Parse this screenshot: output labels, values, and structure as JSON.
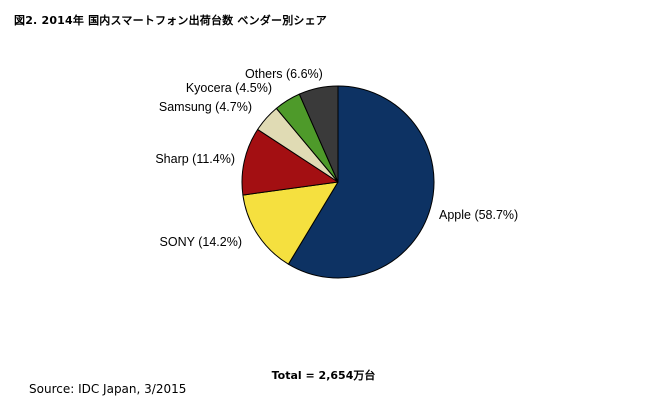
{
  "title": "図2. 2014年 国内スマートフォン出荷台数 ベンダー別シェア",
  "total_text": "Total = 2,654万台",
  "source": "Source: IDC Japan, 3/2015",
  "chart_data": {
    "type": "pie",
    "title": "図2. 2014年 国内スマートフォン出荷台数 ベンダー別シェア",
    "start": "12 o'clock",
    "direction": "clockwise",
    "slices": [
      {
        "name": "Apple",
        "value": 58.7,
        "label": "Apple (58.7%)",
        "color": "#0d3263"
      },
      {
        "name": "SONY",
        "value": 14.2,
        "label": "SONY (14.2%)",
        "color": "#f5e03f"
      },
      {
        "name": "Sharp",
        "value": 11.4,
        "label": "Sharp (11.4%)",
        "color": "#a30f12"
      },
      {
        "name": "Samsung",
        "value": 4.7,
        "label": "Samsung (4.7%)",
        "color": "#e0dbb4"
      },
      {
        "name": "Kyocera",
        "value": 4.5,
        "label": "Kyocera (4.5%)",
        "color": "#4e9a2a"
      },
      {
        "name": "Others",
        "value": 6.6,
        "label": "Others (6.6%)",
        "color": "#3a3a3a"
      }
    ],
    "unit": "%"
  }
}
